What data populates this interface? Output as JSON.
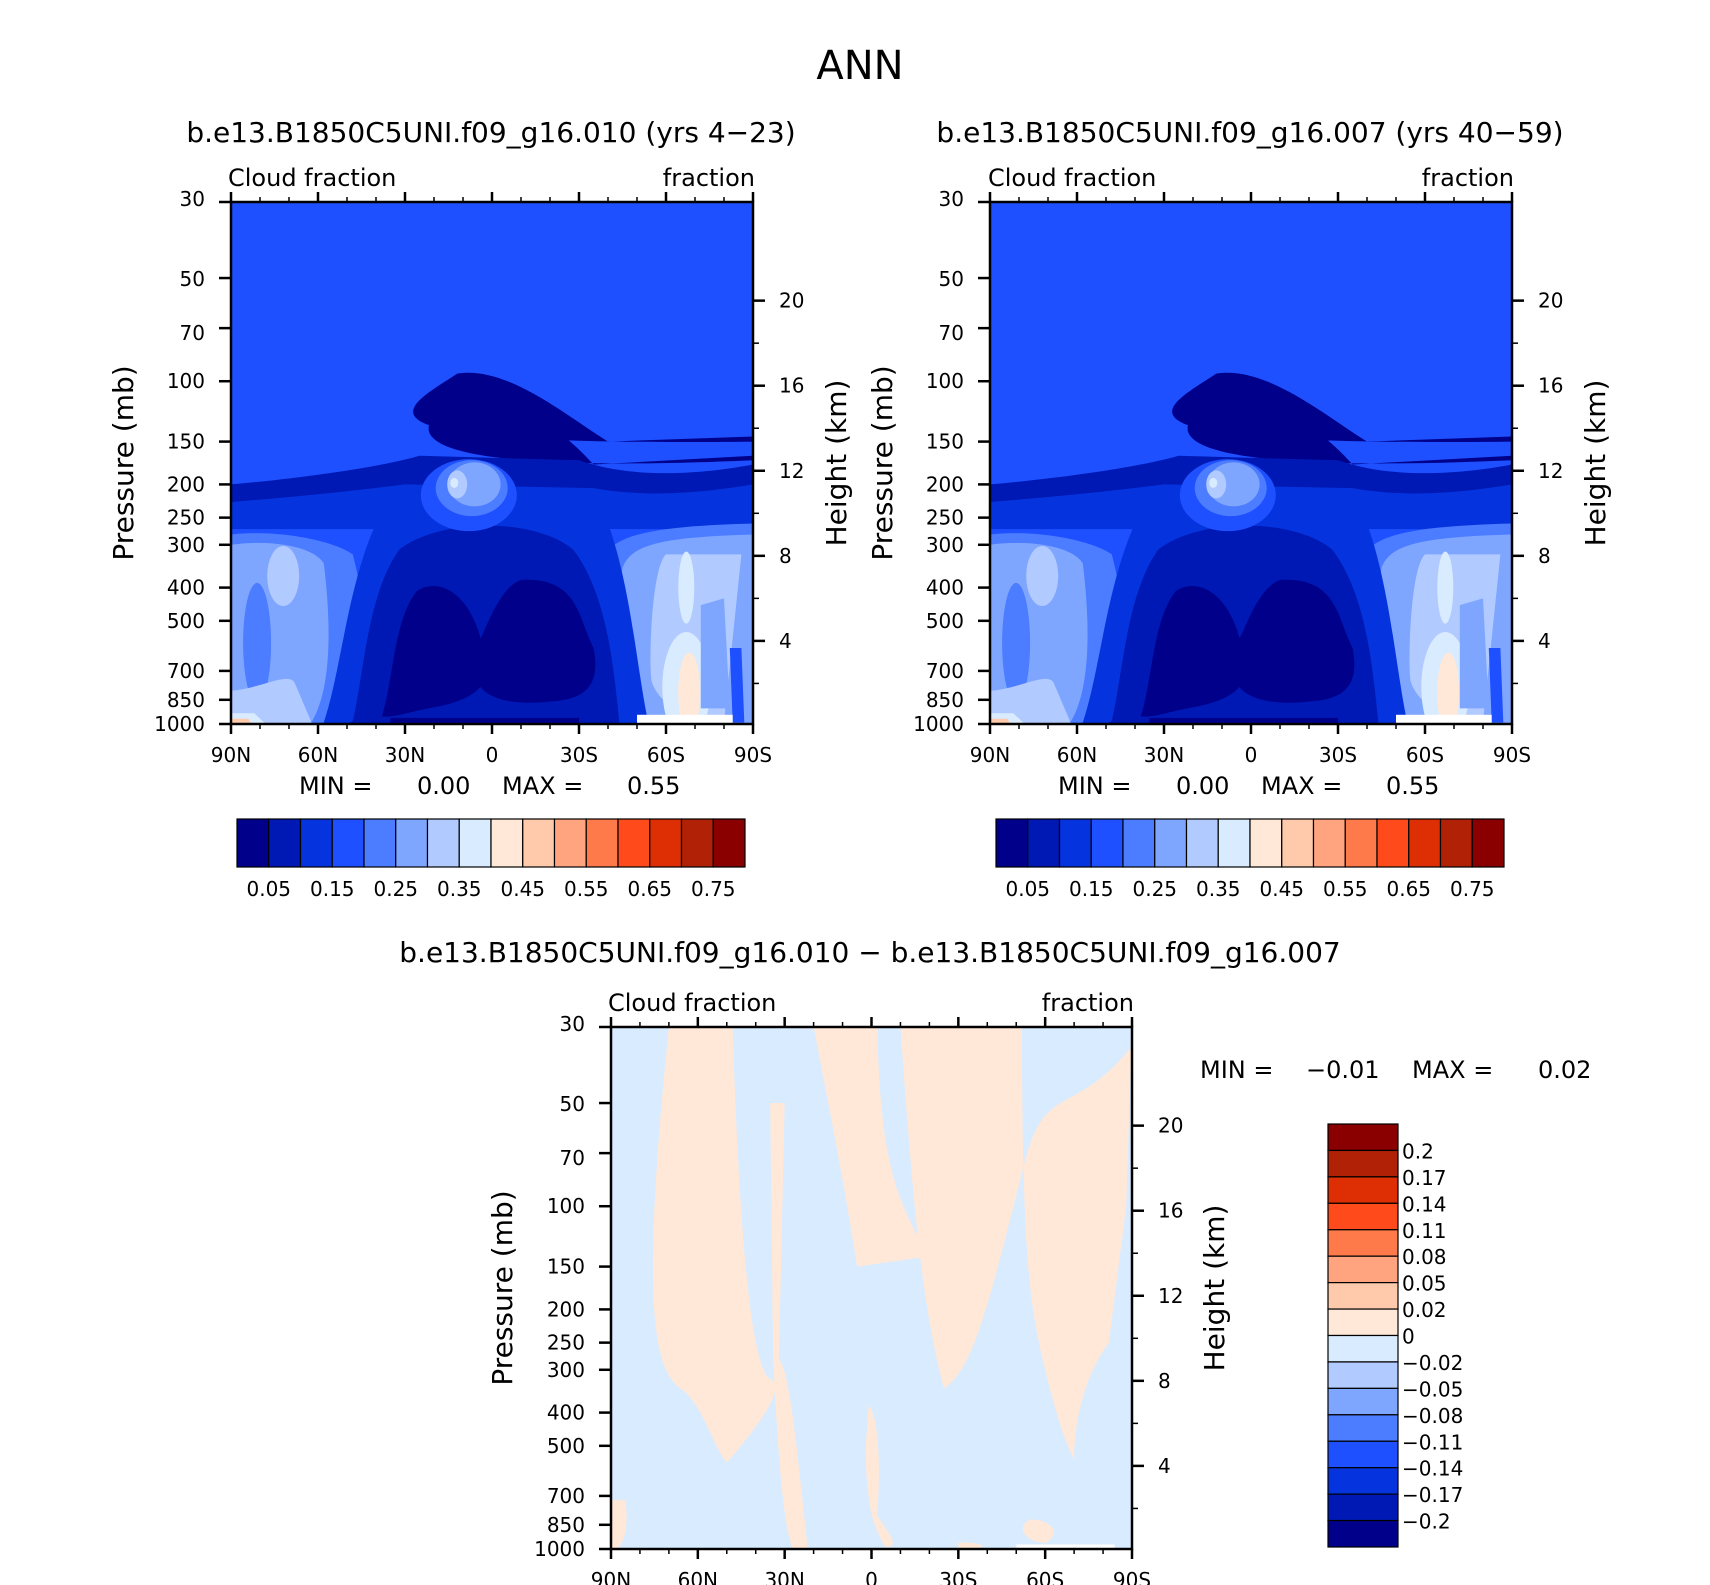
{
  "figure": {
    "title": "ANN",
    "diff_title": "b.e13.B1850C5UNI.f09_g16.010 − b.e13.B1850C5UNI.f09_g16.007"
  },
  "colors": {
    "abs_levels": [
      "#00008a",
      "#0019b4",
      "#0534de",
      "#1e50ff",
      "#4c7cff",
      "#7fa6ff",
      "#b1caff",
      "#d9ebff",
      "#ffe8d7",
      "#ffcaab",
      "#ffa47e",
      "#ff7a4b",
      "#ff4a1c",
      "#dd2e04",
      "#b02105",
      "#8a0000"
    ],
    "diff_levels": [
      "#00008a",
      "#0019b4",
      "#0534de",
      "#1e50ff",
      "#4c7cff",
      "#7fa6ff",
      "#b1caff",
      "#d9ebff",
      "#ffe8d7",
      "#ffcaab",
      "#ffa47e",
      "#ff7a4b",
      "#ff4a1c",
      "#dd2e04",
      "#b02105",
      "#8a0000"
    ]
  },
  "chart_data": [
    {
      "type": "heatmap",
      "title": "b.e13.B1850C5UNI.f09_g16.010 (yrs 4−23)",
      "left_label": "Cloud fraction",
      "right_label": "fraction",
      "xlabel": "",
      "ylabel": "Pressure (mb)",
      "y2label": "Height (km)",
      "x_ticks": [
        "90N",
        "60N",
        "30N",
        "0",
        "30S",
        "60S",
        "90S"
      ],
      "y_ticks": [
        "30",
        "50",
        "70",
        "100",
        "150",
        "200",
        "250",
        "300",
        "400",
        "500",
        "700",
        "850",
        "1000"
      ],
      "y2_ticks": [
        "20",
        "16",
        "12",
        "8",
        "4"
      ],
      "ylim": [
        1000,
        30
      ],
      "y_scale": "log",
      "stats": {
        "min_label": "MIN =",
        "min_value": "0.00",
        "max_label": "MAX =",
        "max_value": "0.55"
      },
      "colorbar_ticks": [
        "0.05",
        "0.15",
        "0.25",
        "0.35",
        "0.45",
        "0.55",
        "0.65",
        "0.75"
      ],
      "field_note": "zonal-mean cloud fraction: near zero above ~200 mb and in subtropical lower troposphere; peak ~0.40 near 10N at 200 mb; ~0.35–0.45 near 60S mid-levels",
      "regions": [
        {
          "level": 0,
          "desc": "stratosphere above ~200 mb"
        },
        {
          "level": 0,
          "desc": "tropical/subtropical mid troposphere 30N–30S, 400–950 mb"
        },
        {
          "level": 6,
          "desc": "tropical anvil maximum near 10N, 200 mb"
        },
        {
          "level": 7,
          "desc": "southern high latitudes 60S–70S, 750–900 mb"
        },
        {
          "level": 8,
          "desc": "surface near 90N"
        }
      ]
    },
    {
      "type": "heatmap",
      "title": "b.e13.B1850C5UNI.f09_g16.007 (yrs 40−59)",
      "left_label": "Cloud fraction",
      "right_label": "fraction",
      "xlabel": "",
      "ylabel": "Pressure (mb)",
      "y2label": "Height (km)",
      "x_ticks": [
        "90N",
        "60N",
        "30N",
        "0",
        "30S",
        "60S",
        "90S"
      ],
      "y_ticks": [
        "30",
        "50",
        "70",
        "100",
        "150",
        "200",
        "250",
        "300",
        "400",
        "500",
        "700",
        "850",
        "1000"
      ],
      "y2_ticks": [
        "20",
        "16",
        "12",
        "8",
        "4"
      ],
      "ylim": [
        1000,
        30
      ],
      "y_scale": "log",
      "stats": {
        "min_label": "MIN =",
        "min_value": "0.00",
        "max_label": "MAX =",
        "max_value": "0.55"
      },
      "colorbar_ticks": [
        "0.05",
        "0.15",
        "0.25",
        "0.35",
        "0.45",
        "0.55",
        "0.65",
        "0.75"
      ]
    },
    {
      "type": "heatmap",
      "title": "b.e13.B1850C5UNI.f09_g16.010 − b.e13.B1850C5UNI.f09_g16.007",
      "left_label": "Cloud fraction",
      "right_label": "fraction",
      "xlabel": "",
      "ylabel": "Pressure (mb)",
      "y2label": "Height (km)",
      "x_ticks": [
        "90N",
        "60N",
        "30N",
        "0",
        "30S",
        "60S",
        "90S"
      ],
      "y_ticks": [
        "30",
        "50",
        "70",
        "100",
        "150",
        "200",
        "250",
        "300",
        "400",
        "500",
        "700",
        "850",
        "1000"
      ],
      "y2_ticks": [
        "20",
        "16",
        "12",
        "8",
        "4"
      ],
      "ylim": [
        1000,
        30
      ],
      "y_scale": "log",
      "stats": {
        "min_label": "MIN =",
        "min_value": "−0.01",
        "max_label": "MAX =",
        "max_value": "0.02"
      },
      "colorbar_ticks": [
        "0.2",
        "0.17",
        "0.14",
        "0.11",
        "0.08",
        "0.05",
        "0.02",
        "0",
        "−0.02",
        "−0.05",
        "−0.08",
        "−0.11",
        "−0.14",
        "−0.17",
        "−0.2"
      ],
      "regions": [
        {
          "level": 7,
          "desc": "slightly negative (−0.02–0) over most of domain"
        },
        {
          "level": 8,
          "desc": "slightly positive (0–0.02) patches near 70N–45N upper levels, 30N–25N column, near equator, 10S–40S upper levels"
        }
      ]
    }
  ]
}
